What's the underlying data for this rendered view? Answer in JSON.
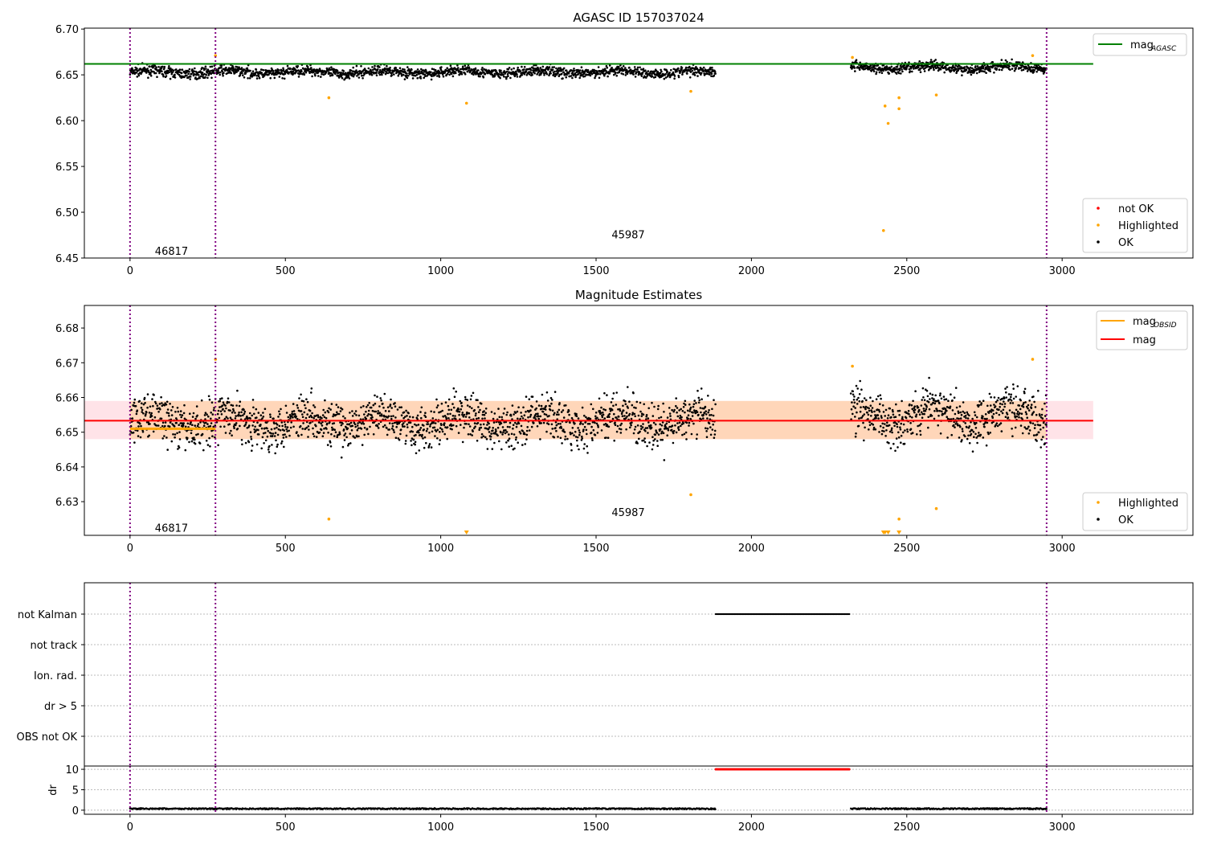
{
  "chart_data": [
    {
      "type": "scatter",
      "title": "AGASC ID 157037024",
      "xlim": [
        -147,
        3421
      ],
      "ylim": [
        6.45,
        6.701
      ],
      "xticks": [
        0,
        500,
        1000,
        1500,
        2000,
        2500,
        3000
      ],
      "yticks": [
        6.45,
        6.5,
        6.55,
        6.6,
        6.65,
        6.7
      ],
      "ytick_labels": [
        "6.45",
        "6.50",
        "6.55",
        "6.60",
        "6.65",
        "6.70"
      ],
      "legend": {
        "placement": "top-right",
        "entries": [
          "mag_AGASC"
        ],
        "label_main": "mag",
        "label_sub": "AGASC"
      },
      "legend2": {
        "placement": "bottom-right",
        "entries": [
          "not OK",
          "Highlighted",
          "OK"
        ]
      },
      "mag_agasc": 6.662,
      "mag_agasc_xrange": [
        -147,
        3100
      ],
      "ok_segments": [
        {
          "x": [
            0,
            1885
          ],
          "mean": 6.653,
          "sd": 0.004
        },
        {
          "x": [
            2320,
            2950
          ],
          "mean": 6.658,
          "sd": 0.004
        }
      ],
      "highlighted": [
        [
          275,
          6.671
        ],
        [
          640,
          6.625
        ],
        [
          1083,
          6.619
        ],
        [
          1805,
          6.632
        ],
        [
          2325,
          6.669
        ],
        [
          2425,
          6.48
        ],
        [
          2430,
          6.616
        ],
        [
          2440,
          6.597
        ],
        [
          2475,
          6.613
        ],
        [
          2475,
          6.625
        ],
        [
          2595,
          6.628
        ],
        [
          2905,
          6.671
        ]
      ],
      "obsid_boundaries": [
        0,
        275,
        2950
      ],
      "annotations": [
        {
          "x": 80,
          "y": 6.458,
          "text": "46817"
        },
        {
          "x": 1550,
          "y": 6.476,
          "text": "45987"
        }
      ],
      "colors": {
        "ok": "#000000",
        "highlighted": "#ffa500",
        "not_ok": "#ff0000",
        "agasc": "#008000",
        "boundary": "#800080"
      }
    },
    {
      "type": "scatter",
      "title": "Magnitude Estimates",
      "xlim": [
        -147,
        3421
      ],
      "ylim": [
        6.6203,
        6.6865
      ],
      "xticks": [
        0,
        500,
        1000,
        1500,
        2000,
        2500,
        3000
      ],
      "yticks": [
        6.63,
        6.64,
        6.65,
        6.66,
        6.67,
        6.68
      ],
      "ytick_labels": [
        "6.63",
        "6.64",
        "6.65",
        "6.66",
        "6.67",
        "6.68"
      ],
      "legend": {
        "placement": "top-right",
        "entries": [
          "mag_OBSID",
          "mag"
        ],
        "label_main": "mag",
        "label_sub": "OBSID",
        "label_mag": "mag"
      },
      "legend2": {
        "placement": "bottom-right",
        "entries": [
          "Highlighted",
          "OK"
        ]
      },
      "mag": 6.6533,
      "mag_band": [
        6.648,
        6.659
      ],
      "mag_obsid": [
        {
          "x": [
            0,
            275
          ],
          "y": 6.651
        }
      ],
      "ok_segments": [
        {
          "x": [
            0,
            1885
          ],
          "mean": 6.653,
          "sd": 0.0045
        },
        {
          "x": [
            2320,
            2950
          ],
          "mean": 6.655,
          "sd": 0.0048
        }
      ],
      "annotations": [
        {
          "x": 80,
          "y": 6.6225,
          "text": "46817"
        },
        {
          "x": 1550,
          "y": 6.627,
          "text": "45987"
        }
      ]
    },
    {
      "type": "scatter",
      "title": "",
      "ylabels": [
        "not Kalman",
        "not track",
        "Ion. rad.",
        "dr > 5",
        "OBS not OK"
      ],
      "not_kalman_x": [
        1885,
        2315
      ]
    },
    {
      "type": "scatter",
      "ylabel": "dr",
      "ylim": [
        -1,
        10.8
      ],
      "yticks": [
        0,
        5,
        10
      ],
      "ytick_labels": [
        "0",
        "5",
        "10"
      ],
      "xticks": [
        0,
        500,
        1000,
        1500,
        2000,
        2500,
        3000
      ],
      "xtick_labels": [
        "0",
        "500",
        "1000",
        "1500",
        "2000",
        "2500",
        "3000"
      ],
      "dr_high": {
        "x": [
          1885,
          2315
        ],
        "y": 10
      },
      "dr_typical": 0.2
    }
  ]
}
